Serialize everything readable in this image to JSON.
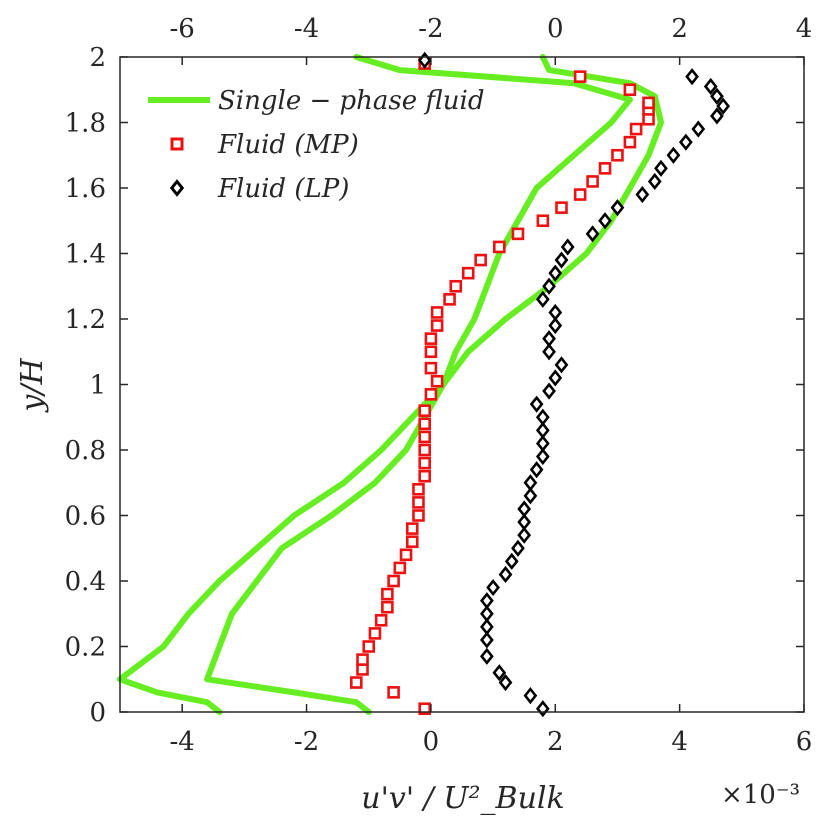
{
  "chart_data": {
    "type": "line",
    "title": "",
    "xlabel": "u'v' / U²_Bulk",
    "ylabel": "y/H",
    "x_exponent_label": "×10⁻³",
    "xlim": [
      -5,
      6
    ],
    "ylim": [
      0,
      2
    ],
    "x_ticks": [
      -4,
      -2,
      0,
      2,
      4,
      6
    ],
    "y_ticks": [
      0,
      0.2,
      0.4,
      0.6,
      0.8,
      1,
      1.2,
      1.4,
      1.6,
      1.8,
      2
    ],
    "x_tick_labels": [
      "-4",
      "-2",
      "0",
      "2",
      "4",
      "6"
    ],
    "y_tick_labels": [
      "0",
      "0.2",
      "0.4",
      "0.6",
      "0.8",
      "1",
      "1.2",
      "1.4",
      "1.6",
      "1.8",
      "2"
    ],
    "top_axis": {
      "xlim": [
        -7,
        4
      ],
      "ticks": [
        -6,
        -4,
        -2,
        0,
        2,
        4
      ],
      "tick_labels": [
        "-6",
        "-4",
        "-2",
        "0",
        "2",
        "4"
      ]
    },
    "legend": {
      "position": "top-left",
      "entries": [
        "Single − phase fluid",
        "Fluid (MP)",
        "Fluid (LP)"
      ]
    },
    "series": [
      {
        "name": "Single − phase fluid (bottom axis)",
        "axis": "bottom",
        "style": "line",
        "color": "#66ee22",
        "points": [
          [
            -1.0,
            0.0
          ],
          [
            -1.2,
            0.03
          ],
          [
            -2.2,
            0.06
          ],
          [
            -3.6,
            0.1
          ],
          [
            -3.4,
            0.2
          ],
          [
            -3.2,
            0.3
          ],
          [
            -2.8,
            0.4
          ],
          [
            -2.4,
            0.5
          ],
          [
            -1.6,
            0.6
          ],
          [
            -0.9,
            0.7
          ],
          [
            -0.4,
            0.8
          ],
          [
            -0.1,
            0.9
          ],
          [
            0.2,
            1.0
          ],
          [
            0.4,
            1.1
          ],
          [
            0.7,
            1.2
          ],
          [
            0.9,
            1.3
          ],
          [
            1.1,
            1.4
          ],
          [
            1.4,
            1.5
          ],
          [
            1.7,
            1.6
          ],
          [
            2.3,
            1.7
          ],
          [
            2.9,
            1.8
          ],
          [
            3.2,
            1.87
          ],
          [
            2.3,
            1.92
          ],
          [
            -0.5,
            1.96
          ],
          [
            -1.2,
            2.0
          ]
        ]
      },
      {
        "name": "Single − phase fluid (top axis)",
        "axis": "top",
        "style": "line",
        "color": "#66ee22",
        "points": [
          [
            -5.4,
            0.0
          ],
          [
            -5.6,
            0.03
          ],
          [
            -6.4,
            0.06
          ],
          [
            -7.0,
            0.1
          ],
          [
            -6.3,
            0.2
          ],
          [
            -5.9,
            0.3
          ],
          [
            -5.4,
            0.4
          ],
          [
            -4.8,
            0.5
          ],
          [
            -4.2,
            0.6
          ],
          [
            -3.4,
            0.7
          ],
          [
            -2.8,
            0.8
          ],
          [
            -2.3,
            0.9
          ],
          [
            -1.8,
            1.0
          ],
          [
            -1.4,
            1.1
          ],
          [
            -0.8,
            1.2
          ],
          [
            -0.1,
            1.3
          ],
          [
            0.5,
            1.4
          ],
          [
            0.9,
            1.5
          ],
          [
            1.2,
            1.6
          ],
          [
            1.5,
            1.7
          ],
          [
            1.7,
            1.8
          ],
          [
            1.6,
            1.88
          ],
          [
            1.2,
            1.92
          ],
          [
            -0.1,
            1.96
          ],
          [
            -0.2,
            2.0
          ]
        ]
      },
      {
        "name": "Fluid (MP)",
        "axis": "bottom",
        "style": "markers",
        "marker": "square",
        "color": "#ee1111",
        "points": [
          [
            -0.1,
            0.01
          ],
          [
            -0.6,
            0.06
          ],
          [
            -1.2,
            0.09
          ],
          [
            -1.1,
            0.13
          ],
          [
            -1.1,
            0.16
          ],
          [
            -1.0,
            0.2
          ],
          [
            -0.9,
            0.24
          ],
          [
            -0.8,
            0.28
          ],
          [
            -0.7,
            0.32
          ],
          [
            -0.7,
            0.36
          ],
          [
            -0.6,
            0.4
          ],
          [
            -0.5,
            0.44
          ],
          [
            -0.4,
            0.48
          ],
          [
            -0.3,
            0.52
          ],
          [
            -0.3,
            0.56
          ],
          [
            -0.2,
            0.6
          ],
          [
            -0.2,
            0.64
          ],
          [
            -0.2,
            0.68
          ],
          [
            -0.1,
            0.72
          ],
          [
            -0.1,
            0.76
          ],
          [
            -0.1,
            0.8
          ],
          [
            -0.1,
            0.84
          ],
          [
            -0.1,
            0.88
          ],
          [
            -0.1,
            0.92
          ],
          [
            0.0,
            0.97
          ],
          [
            0.1,
            1.01
          ],
          [
            0.0,
            1.05
          ],
          [
            0.0,
            1.1
          ],
          [
            0.0,
            1.14
          ],
          [
            0.1,
            1.18
          ],
          [
            0.1,
            1.22
          ],
          [
            0.3,
            1.26
          ],
          [
            0.4,
            1.3
          ],
          [
            0.6,
            1.34
          ],
          [
            0.8,
            1.38
          ],
          [
            1.1,
            1.42
          ],
          [
            1.4,
            1.46
          ],
          [
            1.8,
            1.5
          ],
          [
            2.1,
            1.54
          ],
          [
            2.4,
            1.58
          ],
          [
            2.6,
            1.62
          ],
          [
            2.8,
            1.66
          ],
          [
            3.0,
            1.7
          ],
          [
            3.2,
            1.74
          ],
          [
            3.3,
            1.78
          ],
          [
            3.5,
            1.81
          ],
          [
            3.5,
            1.84
          ],
          [
            3.5,
            1.86
          ],
          [
            3.2,
            1.9
          ],
          [
            2.4,
            1.94
          ],
          [
            -0.1,
            1.98
          ]
        ]
      },
      {
        "name": "Fluid (LP)",
        "axis": "bottom",
        "style": "markers",
        "marker": "diamond",
        "color": "#000000",
        "points": [
          [
            1.8,
            0.01
          ],
          [
            1.6,
            0.05
          ],
          [
            1.2,
            0.09
          ],
          [
            1.1,
            0.12
          ],
          [
            0.9,
            0.17
          ],
          [
            0.9,
            0.22
          ],
          [
            0.9,
            0.26
          ],
          [
            0.9,
            0.3
          ],
          [
            0.9,
            0.34
          ],
          [
            1.0,
            0.38
          ],
          [
            1.2,
            0.42
          ],
          [
            1.3,
            0.46
          ],
          [
            1.4,
            0.5
          ],
          [
            1.5,
            0.54
          ],
          [
            1.5,
            0.58
          ],
          [
            1.5,
            0.62
          ],
          [
            1.6,
            0.66
          ],
          [
            1.6,
            0.7
          ],
          [
            1.7,
            0.74
          ],
          [
            1.8,
            0.78
          ],
          [
            1.8,
            0.82
          ],
          [
            1.8,
            0.86
          ],
          [
            1.8,
            0.9
          ],
          [
            1.7,
            0.94
          ],
          [
            1.9,
            0.98
          ],
          [
            2.0,
            1.02
          ],
          [
            2.1,
            1.06
          ],
          [
            1.9,
            1.1
          ],
          [
            1.9,
            1.14
          ],
          [
            2.0,
            1.18
          ],
          [
            2.0,
            1.22
          ],
          [
            1.8,
            1.26
          ],
          [
            1.9,
            1.3
          ],
          [
            2.0,
            1.34
          ],
          [
            2.1,
            1.38
          ],
          [
            2.2,
            1.42
          ],
          [
            2.6,
            1.46
          ],
          [
            2.8,
            1.5
          ],
          [
            3.0,
            1.54
          ],
          [
            3.4,
            1.58
          ],
          [
            3.6,
            1.62
          ],
          [
            3.7,
            1.66
          ],
          [
            3.9,
            1.7
          ],
          [
            4.1,
            1.74
          ],
          [
            4.3,
            1.78
          ],
          [
            4.6,
            1.82
          ],
          [
            4.7,
            1.85
          ],
          [
            4.6,
            1.88
          ],
          [
            4.5,
            1.91
          ],
          [
            4.2,
            1.94
          ],
          [
            -0.1,
            1.99
          ]
        ]
      }
    ]
  }
}
